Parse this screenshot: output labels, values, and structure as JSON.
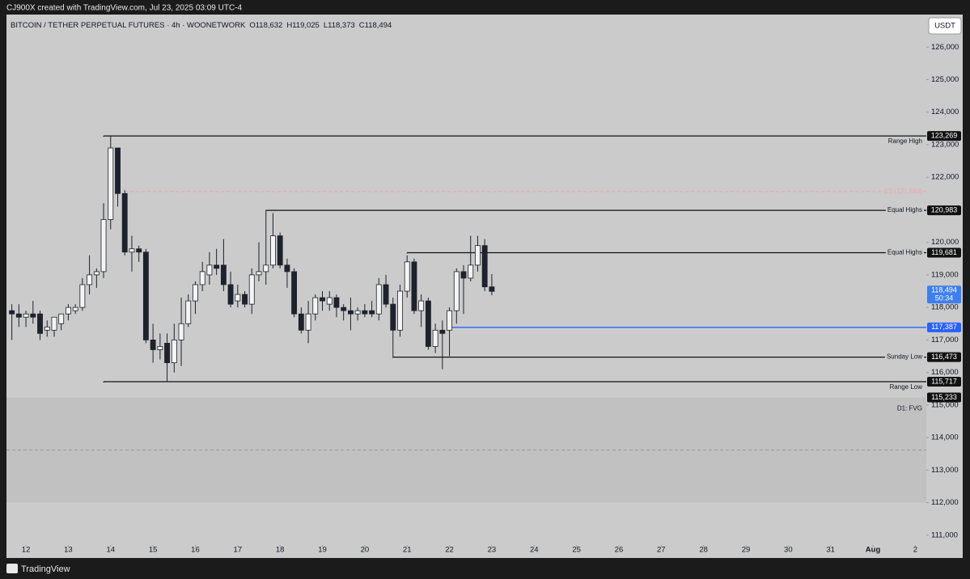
{
  "header": {
    "caption": "CJ900X created with TradingView.com, Jul 23, 2025 03:09 UTC-4"
  },
  "footer": {
    "brand": "TradingView"
  },
  "chart_data": {
    "type": "candlestick",
    "title": "BITCOIN / TETHER PERPETUAL FUTURES · 4h · WOONETWORK",
    "ohlc_labels": [
      "O118,632",
      "H119,025",
      "L118,373",
      "C118,494"
    ],
    "currency": "USDT",
    "x": [
      11.667,
      11.833,
      12,
      12.167,
      12.333,
      12.5,
      12.667,
      12.833,
      13,
      13.167,
      13.333,
      13.5,
      13.667,
      13.833,
      14,
      14.167,
      14.333,
      14.5,
      14.667,
      14.833,
      15,
      15.167,
      15.333,
      15.5,
      15.667,
      15.833,
      16,
      16.167,
      16.333,
      16.5,
      16.667,
      16.833,
      17,
      17.167,
      17.333,
      17.5,
      17.667,
      17.833,
      18,
      18.167,
      18.333,
      18.5,
      18.667,
      18.833,
      19,
      19.167,
      19.333,
      19.5,
      19.667,
      19.833,
      20,
      20.167,
      20.333,
      20.5,
      20.667,
      20.833,
      21,
      21.167,
      21.333,
      21.5,
      21.667,
      21.833,
      22,
      22.167,
      22.333,
      22.5,
      22.667,
      22.833,
      23
    ],
    "open": [
      117900,
      117800,
      117700,
      117800,
      117800,
      117300,
      117300,
      117500,
      117800,
      117900,
      118000,
      118700,
      119000,
      119100,
      120700,
      122900,
      121500,
      119700,
      119800,
      119700,
      117000,
      116700,
      116900,
      116300,
      117000,
      117500,
      118200,
      118700,
      119000,
      119300,
      119300,
      118700,
      118200,
      118400,
      118100,
      119000,
      119100,
      119300,
      120200,
      119300,
      119100,
      117800,
      117300,
      117800,
      118300,
      118100,
      118300,
      118000,
      117900,
      117800,
      117900,
      117900,
      117800,
      118700,
      118100,
      117300,
      118500,
      119400,
      117900,
      118200,
      116800,
      117300,
      117300,
      117900,
      119100,
      118900,
      119300,
      119900,
      118632
    ],
    "high": [
      118100,
      118100,
      117900,
      118200,
      117900,
      117600,
      117700,
      117800,
      118100,
      118100,
      118900,
      119600,
      119200,
      121200,
      123269,
      122900,
      121600,
      120200,
      119900,
      119800,
      117500,
      117200,
      117200,
      117500,
      118300,
      118400,
      118800,
      119400,
      119700,
      119800,
      120100,
      119100,
      118700,
      118500,
      119200,
      120000,
      120983,
      120900,
      120300,
      119500,
      119200,
      118000,
      118200,
      118400,
      118500,
      118500,
      118400,
      118100,
      118300,
      118000,
      118100,
      118200,
      118900,
      119000,
      118300,
      118700,
      119600,
      119500,
      118400,
      118300,
      117500,
      117600,
      118000,
      119200,
      119300,
      120200,
      120200,
      120100,
      119025
    ],
    "low": [
      117000,
      117400,
      117400,
      117500,
      117000,
      117100,
      117100,
      117300,
      117600,
      117800,
      117900,
      118400,
      118600,
      118900,
      120400,
      121100,
      119600,
      119100,
      119400,
      116900,
      116300,
      116400,
      115717,
      116000,
      116200,
      117400,
      117800,
      118500,
      118700,
      119000,
      118500,
      118000,
      118000,
      118000,
      117800,
      118800,
      118700,
      119200,
      119200,
      118600,
      117700,
      117200,
      116900,
      117600,
      117900,
      117900,
      117700,
      117600,
      117300,
      117600,
      117700,
      117700,
      117600,
      118000,
      116473,
      117100,
      118300,
      117800,
      117400,
      116700,
      116600,
      116100,
      116500,
      117500,
      117800,
      118800,
      119100,
      118500,
      118373
    ],
    "close": [
      117800,
      117700,
      117800,
      117700,
      117200,
      117400,
      117700,
      117800,
      118000,
      118000,
      118700,
      119000,
      119100,
      120700,
      122900,
      121500,
      119700,
      119800,
      119700,
      117000,
      116700,
      116800,
      116300,
      117000,
      117500,
      118200,
      118700,
      119100,
      119300,
      119200,
      118700,
      118100,
      118400,
      118100,
      119000,
      119100,
      119300,
      120200,
      119300,
      119100,
      117800,
      117300,
      117800,
      118300,
      118200,
      118300,
      118000,
      117900,
      117800,
      117900,
      117800,
      117800,
      118700,
      118100,
      117300,
      118500,
      119400,
      117900,
      118200,
      116800,
      117300,
      117200,
      117900,
      119100,
      118900,
      119300,
      119900,
      118632,
      118494
    ],
    "up_color": "#f4f4f4",
    "down_color": "#1e222d",
    "last_price": {
      "label": "118,494",
      "countdown": "50:34",
      "color": "#3d7ff0"
    },
    "levels": [
      {
        "name": "Range High",
        "value": 123269,
        "value_label": "123,269",
        "start_x": 13.833,
        "color": "#111111",
        "label_position": "below"
      },
      {
        "name": "0.5 (121,560)",
        "value": 121560,
        "start_x": 14.333,
        "color": "#f0a3ab",
        "style": "dashed",
        "label_position": "inline"
      },
      {
        "name": "Equal Highs",
        "value": 120983,
        "value_label": "120,983",
        "start_x": 17.667,
        "color": "#111111",
        "label_position": "inline"
      },
      {
        "name": "Equal Highs",
        "value": 119681,
        "value_label": "119,681",
        "start_x": 21.0,
        "color": "#111111",
        "label_position": "inline"
      },
      {
        "value": 117387,
        "value_label": "117,387",
        "start_x": 22.0,
        "color": "#2962ff"
      },
      {
        "name": "Sunday Low",
        "value": 116473,
        "value_label": "116,473",
        "start_x": 20.667,
        "color": "#111111",
        "label_position": "inline"
      },
      {
        "name": "Range Low",
        "value": 115717,
        "value_label": "115,717",
        "start_x": 13.833,
        "color": "#111111",
        "label_position": "below"
      }
    ],
    "zones": [
      {
        "name": "D1: FVG",
        "top": 115233,
        "top_label": "115,233",
        "bottom": 112000
      }
    ],
    "xlim": [
      11.54,
      33.26
    ],
    "xticks": [
      12,
      13,
      14,
      15,
      16,
      17,
      18,
      19,
      20,
      21,
      22,
      23,
      24,
      25,
      26,
      27,
      28,
      29,
      30,
      31,
      {
        "value": 32,
        "label": "Aug"
      },
      {
        "value": 33,
        "label": "2"
      }
    ],
    "ylim": [
      110300,
      127000
    ],
    "yticks": [
      {
        "value": 111000,
        "label": "111,000"
      },
      {
        "value": 112000,
        "label": "112,000"
      },
      {
        "value": 113000,
        "label": "113,000"
      },
      {
        "value": 114000,
        "label": "114,000"
      },
      {
        "value": 115000,
        "label": "115,000"
      },
      {
        "value": 116000,
        "label": "116,000"
      },
      {
        "value": 117000,
        "label": "117,000"
      },
      {
        "value": 118000,
        "label": "118,000"
      },
      {
        "value": 119000,
        "label": "119,000"
      },
      {
        "value": 120000,
        "label": "120,000"
      },
      {
        "value": 121000,
        "label": "121,000"
      },
      {
        "value": 122000,
        "label": "122,000"
      },
      {
        "value": 123000,
        "label": "123,000"
      },
      {
        "value": 124000,
        "label": "124,000"
      },
      {
        "value": 125000,
        "label": "125,000"
      },
      {
        "value": 126000,
        "label": "126,000"
      }
    ],
    "grid": false
  }
}
